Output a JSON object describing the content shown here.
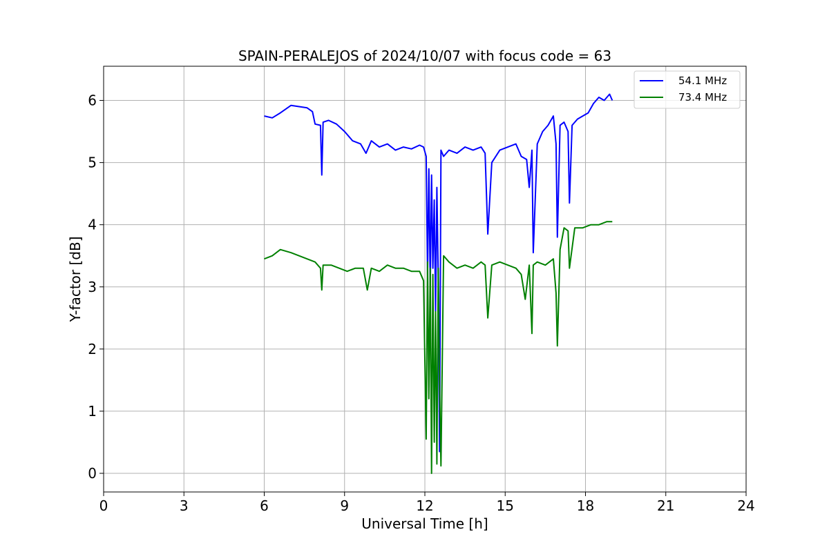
{
  "chart_data": {
    "type": "line",
    "title": "SPAIN-PERALEJOS of 2024/10/07 with focus code = 63",
    "xlabel": "Universal Time [h]",
    "ylabel": "Y-factor [dB]",
    "xlim": [
      0,
      24
    ],
    "ylim": [
      -0.3,
      6.55
    ],
    "xticks": [
      "0",
      "3",
      "6",
      "9",
      "12",
      "15",
      "18",
      "21",
      "24"
    ],
    "yticks": [
      "0",
      "1",
      "2",
      "3",
      "4",
      "5",
      "6"
    ],
    "grid": true,
    "legend_position": "top-right",
    "series": [
      {
        "name": "54.1 MHz",
        "color": "#0000ff",
        "x": [
          6.0,
          6.3,
          6.6,
          7.0,
          7.3,
          7.6,
          7.8,
          7.9,
          8.1,
          8.15,
          8.2,
          8.4,
          8.7,
          9.0,
          9.3,
          9.6,
          9.8,
          10.0,
          10.3,
          10.6,
          10.9,
          11.2,
          11.5,
          11.8,
          11.95,
          12.05,
          12.1,
          12.15,
          12.2,
          12.25,
          12.3,
          12.35,
          12.4,
          12.45,
          12.5,
          12.55,
          12.6,
          12.7,
          12.9,
          13.2,
          13.5,
          13.8,
          14.1,
          14.25,
          14.35,
          14.5,
          14.8,
          15.1,
          15.4,
          15.6,
          15.8,
          15.9,
          16.0,
          16.05,
          16.2,
          16.4,
          16.6,
          16.8,
          16.9,
          16.95,
          17.05,
          17.2,
          17.35,
          17.4,
          17.5,
          17.7,
          17.9,
          18.1,
          18.3,
          18.5,
          18.7,
          18.9,
          19.0
        ],
        "y": [
          5.75,
          5.72,
          5.8,
          5.92,
          5.9,
          5.88,
          5.82,
          5.62,
          5.6,
          4.8,
          5.65,
          5.68,
          5.62,
          5.5,
          5.35,
          5.3,
          5.15,
          5.35,
          5.25,
          5.3,
          5.2,
          5.25,
          5.22,
          5.28,
          5.25,
          5.1,
          3.2,
          4.9,
          3.0,
          4.8,
          3.3,
          4.4,
          2.6,
          4.6,
          3.1,
          0.35,
          5.2,
          5.1,
          5.2,
          5.15,
          5.25,
          5.2,
          5.25,
          5.15,
          3.85,
          5.0,
          5.2,
          5.25,
          5.3,
          5.1,
          5.05,
          4.6,
          5.2,
          3.55,
          5.3,
          5.5,
          5.6,
          5.75,
          5.3,
          3.8,
          5.6,
          5.65,
          5.5,
          4.35,
          5.6,
          5.7,
          5.75,
          5.8,
          5.95,
          6.05,
          6.0,
          6.1,
          6.0
        ]
      },
      {
        "name": "73.4 MHz",
        "color": "#008000",
        "x": [
          6.0,
          6.3,
          6.6,
          7.0,
          7.3,
          7.6,
          7.9,
          8.1,
          8.15,
          8.2,
          8.5,
          8.8,
          9.1,
          9.4,
          9.7,
          9.85,
          10.0,
          10.3,
          10.6,
          10.9,
          11.2,
          11.5,
          11.8,
          11.95,
          12.05,
          12.1,
          12.15,
          12.2,
          12.25,
          12.3,
          12.35,
          12.4,
          12.45,
          12.5,
          12.55,
          12.6,
          12.7,
          12.9,
          13.2,
          13.5,
          13.8,
          14.1,
          14.25,
          14.35,
          14.5,
          14.8,
          15.1,
          15.4,
          15.6,
          15.75,
          15.9,
          16.0,
          16.05,
          16.2,
          16.5,
          16.8,
          16.9,
          16.95,
          17.05,
          17.2,
          17.35,
          17.4,
          17.6,
          17.9,
          18.2,
          18.5,
          18.8,
          19.0
        ],
        "y": [
          3.45,
          3.5,
          3.6,
          3.55,
          3.5,
          3.45,
          3.4,
          3.3,
          2.95,
          3.35,
          3.35,
          3.3,
          3.25,
          3.3,
          3.3,
          2.95,
          3.3,
          3.25,
          3.35,
          3.3,
          3.3,
          3.25,
          3.25,
          3.1,
          0.55,
          3.4,
          1.2,
          3.3,
          0.0,
          3.2,
          0.5,
          2.6,
          0.15,
          3.3,
          1.4,
          0.12,
          3.5,
          3.4,
          3.3,
          3.35,
          3.3,
          3.4,
          3.35,
          2.5,
          3.35,
          3.4,
          3.35,
          3.3,
          3.2,
          2.8,
          3.35,
          2.25,
          3.35,
          3.4,
          3.35,
          3.45,
          2.9,
          2.05,
          3.6,
          3.95,
          3.9,
          3.3,
          3.95,
          3.95,
          4.0,
          4.0,
          4.05,
          4.05
        ]
      }
    ]
  }
}
